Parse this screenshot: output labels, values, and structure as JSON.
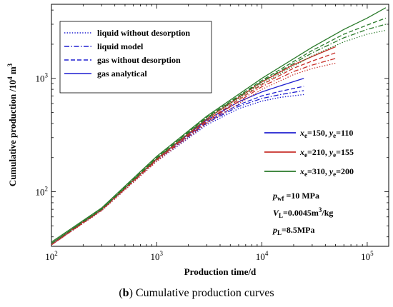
{
  "caption": {
    "panel": "b",
    "text": "Cumulative production curves"
  },
  "chart_data": {
    "type": "line",
    "xlabel": "Production time/d",
    "ylabel": {
      "main": "Cumulative production /10",
      "exp": "4",
      "unit": " m",
      "unit_exp": "3"
    },
    "xscale": "log",
    "yscale": "log",
    "xlim": [
      100,
      160000
    ],
    "ylim": [
      33,
      4500
    ],
    "x_ticks": [
      {
        "value": 100,
        "base": "10",
        "exp": "2"
      },
      {
        "value": 1000,
        "base": "10",
        "exp": "3"
      },
      {
        "value": 10000,
        "base": "10",
        "exp": "4"
      },
      {
        "value": 100000,
        "base": "10",
        "exp": "5"
      }
    ],
    "y_ticks": [
      {
        "value": 100,
        "base": "10",
        "exp": "2"
      },
      {
        "value": 1000,
        "base": "10",
        "exp": "3"
      }
    ],
    "style_legend": {
      "position": "top-left",
      "entries": [
        {
          "label": "liquid without desorption",
          "dash": "dotted"
        },
        {
          "label": "liquid model",
          "dash": "dashdot"
        },
        {
          "label": "gas without desorption",
          "dash": "dashed"
        },
        {
          "label": "gas analytical",
          "dash": "solid"
        }
      ]
    },
    "case_legend": {
      "position": "right",
      "entries": [
        {
          "color": "#1f1fd0",
          "x_sym": "x",
          "x_sub": "e",
          "x_val": "=150, ",
          "y_sym": "y",
          "y_sub": "e",
          "y_val": "=110"
        },
        {
          "color": "#c8302a",
          "x_sym": "x",
          "x_sub": "e",
          "x_val": "=210, ",
          "y_sym": "y",
          "y_sub": "e",
          "y_val": "=155"
        },
        {
          "color": "#2a7a2a",
          "x_sym": "x",
          "x_sub": "e",
          "x_val": "=310, ",
          "y_sym": "y",
          "y_sub": "e",
          "y_val": "=200"
        }
      ]
    },
    "params": [
      {
        "sym": "p",
        "sub": "wf",
        "text": " =10 MPa",
        "sup": ""
      },
      {
        "sym": "V",
        "sub": "L",
        "text": "=0.0045m",
        "sup": "3",
        "tail": "/kg"
      },
      {
        "sym": "p",
        "sub": "L",
        "text": "=8.5MPa",
        "sup": ""
      }
    ],
    "cases": [
      {
        "color": "#1f1fd0",
        "series": [
          {
            "name": "liquid without desorption",
            "dash": "dotted",
            "x": [
              100,
              300,
              1000,
              3000,
              6000,
              10000,
              15000,
              25000
            ],
            "y": [
              34,
              68,
              185,
              390,
              540,
              630,
              680,
              720
            ]
          },
          {
            "name": "liquid model",
            "dash": "dashdot",
            "x": [
              100,
              300,
              1000,
              3000,
              6000,
              10000,
              15000,
              25000
            ],
            "y": [
              34,
              69,
              190,
              405,
              565,
              665,
              720,
              780
            ]
          },
          {
            "name": "gas without desorption",
            "dash": "dashed",
            "x": [
              100,
              300,
              1000,
              3000,
              6000,
              10000,
              15000,
              25000
            ],
            "y": [
              34,
              69,
              192,
              415,
              585,
              700,
              770,
              850
            ]
          },
          {
            "name": "gas analytical",
            "dash": "solid",
            "x": [
              100,
              300,
              1000,
              3000,
              6000,
              10000,
              15000,
              25000
            ],
            "y": [
              35,
              70,
              195,
              430,
              620,
              760,
              860,
              1000
            ]
          }
        ]
      },
      {
        "color": "#c8302a",
        "series": [
          {
            "name": "liquid without desorption",
            "dash": "dotted",
            "x": [
              100,
              300,
              1000,
              3000,
              10000,
              20000,
              30000,
              50000
            ],
            "y": [
              34,
              68,
              185,
              400,
              800,
              1080,
              1220,
              1360
            ]
          },
          {
            "name": "liquid model",
            "dash": "dashdot",
            "x": [
              100,
              300,
              1000,
              3000,
              10000,
              20000,
              30000,
              50000
            ],
            "y": [
              34,
              69,
              190,
              415,
              845,
              1150,
              1310,
              1500
            ]
          },
          {
            "name": "gas without desorption",
            "dash": "dashed",
            "x": [
              100,
              300,
              1000,
              3000,
              10000,
              20000,
              30000,
              50000
            ],
            "y": [
              34,
              69,
              192,
              425,
              880,
              1230,
              1420,
              1680
            ]
          },
          {
            "name": "gas analytical",
            "dash": "solid",
            "x": [
              100,
              300,
              1000,
              3000,
              10000,
              20000,
              30000,
              50000
            ],
            "y": [
              35,
              70,
              195,
              440,
              930,
              1320,
              1560,
              1900
            ]
          }
        ]
      },
      {
        "color": "#2a7a2a",
        "series": [
          {
            "name": "liquid without desorption",
            "dash": "dotted",
            "x": [
              100,
              300,
              1000,
              3000,
              10000,
              30000,
              60000,
              100000,
              150000
            ],
            "y": [
              35,
              70,
              195,
              440,
              900,
              1580,
              2100,
              2450,
              2650
            ]
          },
          {
            "name": "liquid model",
            "dash": "dashdot",
            "x": [
              100,
              300,
              1000,
              3000,
              10000,
              30000,
              60000,
              100000,
              150000
            ],
            "y": [
              35,
              70,
              198,
              450,
              940,
              1680,
              2280,
              2700,
              3000
            ]
          },
          {
            "name": "gas without desorption",
            "dash": "dashed",
            "x": [
              100,
              300,
              1000,
              3000,
              10000,
              30000,
              60000,
              100000,
              150000
            ],
            "y": [
              35,
              71,
              200,
              455,
              960,
              1760,
              2450,
              2950,
              3400
            ]
          },
          {
            "name": "gas analytical",
            "dash": "solid",
            "x": [
              100,
              300,
              1000,
              3000,
              10000,
              30000,
              60000,
              100000,
              150000
            ],
            "y": [
              36,
              72,
              205,
              465,
              1000,
              1880,
              2700,
              3400,
              4200
            ]
          }
        ]
      }
    ]
  }
}
